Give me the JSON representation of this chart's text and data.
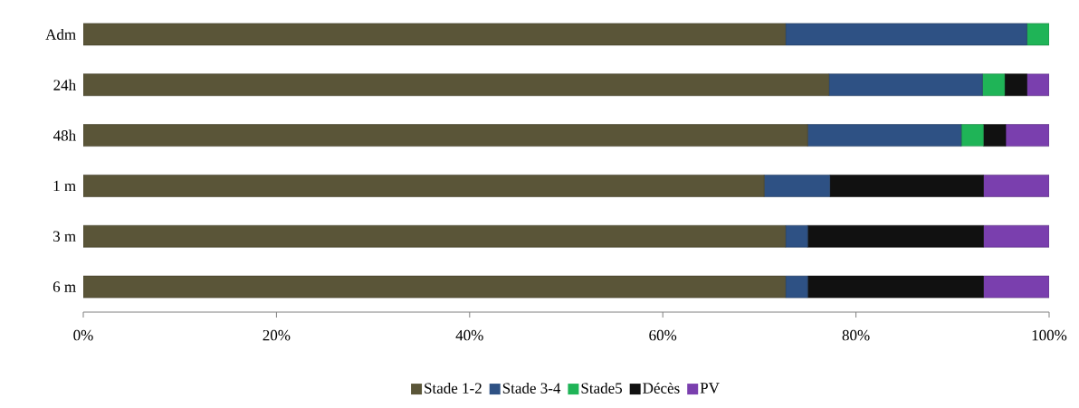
{
  "chart_data": {
    "type": "bar",
    "orientation": "horizontal",
    "stacked": true,
    "categories": [
      "Adm",
      "24h",
      "48h",
      "1 m",
      "3 m",
      "6 m"
    ],
    "series": [
      {
        "name": "Stade 1-2",
        "color": "#5a5538",
        "values": [
          72.7,
          77.2,
          75.0,
          70.5,
          72.7,
          72.7
        ]
      },
      {
        "name": "Stade 3-4",
        "color": "#2e5184",
        "values": [
          25.0,
          15.9,
          15.9,
          6.8,
          2.3,
          2.3
        ]
      },
      {
        "name": "Stade5",
        "color": "#1fb457",
        "values": [
          2.3,
          2.3,
          2.3,
          0,
          0,
          0
        ]
      },
      {
        "name": "Décès",
        "color": "#111111",
        "values": [
          0,
          2.3,
          2.3,
          15.9,
          18.2,
          18.2
        ]
      },
      {
        "name": "PV",
        "color": "#7a3fae",
        "values": [
          0,
          2.3,
          4.5,
          6.8,
          6.8,
          6.8
        ]
      }
    ],
    "xlim": [
      0,
      100
    ],
    "xticks": [
      {
        "value": 0,
        "label": "0%"
      },
      {
        "value": 20,
        "label": "20%"
      },
      {
        "value": 40,
        "label": "40%"
      },
      {
        "value": 60,
        "label": "60%"
      },
      {
        "value": 80,
        "label": "80%"
      },
      {
        "value": 100,
        "label": "100%"
      }
    ],
    "legend": "bottom"
  }
}
